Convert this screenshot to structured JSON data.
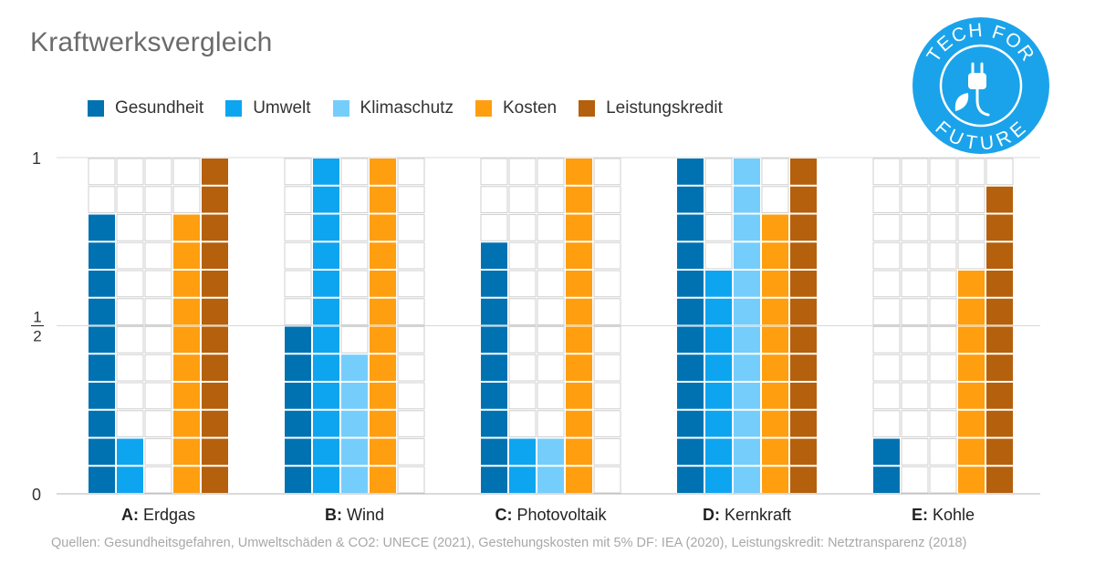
{
  "title": "Kraftwerksvergleich",
  "source": "Quellen: Gesundheitsgefahren, Umweltschäden & CO2: UNECE (2021), Gestehungskosten mit 5% DF: IEA (2020), Leistungskredit: Netztransparenz (2018)",
  "logo": {
    "top_text": "TECH FOR",
    "bottom_text": "FUTURE",
    "color": "#1aa3ea",
    "icon": "plug-leaf-icon"
  },
  "chart_data": {
    "type": "bar",
    "categories": [
      {
        "letter": "A:",
        "name": "Erdgas"
      },
      {
        "letter": "B:",
        "name": "Wind"
      },
      {
        "letter": "C:",
        "name": "Photovoltaik"
      },
      {
        "letter": "D:",
        "name": "Kernkraft"
      },
      {
        "letter": "E:",
        "name": "Kohle"
      }
    ],
    "series": [
      {
        "name": "Gesundheit",
        "color": "#0072b2",
        "values": [
          0.8333,
          0.5,
          0.75,
          1.0,
          0.1667
        ]
      },
      {
        "name": "Umwelt",
        "color": "#0ea5f0",
        "values": [
          0.1667,
          1.0,
          0.1667,
          0.6667,
          0.0
        ]
      },
      {
        "name": "Klimaschutz",
        "color": "#75cdfc",
        "values": [
          0.0,
          0.4167,
          0.1667,
          1.0,
          0.0
        ]
      },
      {
        "name": "Kosten",
        "color": "#ff9e0f",
        "values": [
          0.8333,
          1.0,
          1.0,
          0.8333,
          0.6667
        ]
      },
      {
        "name": "Leistungskredit",
        "color": "#b5600c",
        "values": [
          1.0,
          0.0,
          0.0,
          1.0,
          0.9167
        ]
      }
    ],
    "cells_per_bar": 12,
    "ylim": [
      0,
      1
    ],
    "yticks": [
      {
        "value": 0,
        "label": "0"
      },
      {
        "value": 0.5,
        "numerator": "1",
        "denominator": "2"
      },
      {
        "value": 1,
        "label": "1"
      }
    ],
    "grid": true,
    "legend_position": "top-left"
  }
}
